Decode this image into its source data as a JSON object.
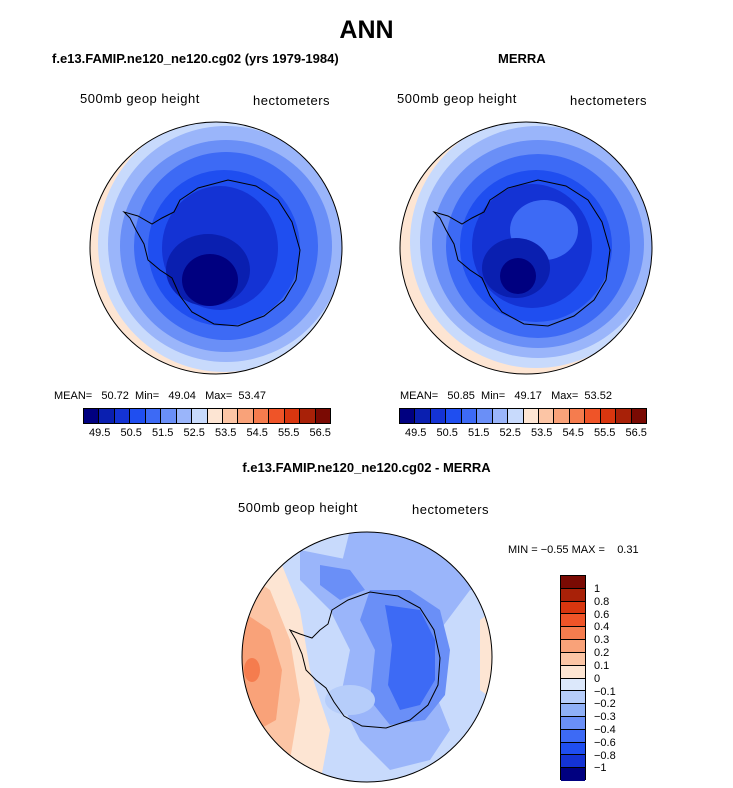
{
  "title": "ANN",
  "panels": [
    {
      "case": "f.e13.FAMIP.ne120_ne120.cg02 (yrs 1979-1984)",
      "variable": "500mb geop height",
      "units": "hectometers",
      "mean_label": "MEAN=",
      "mean": "50.72",
      "min_label": "Min=",
      "min": "49.04",
      "max_label": "Max=",
      "max": "53.47"
    },
    {
      "case": "MERRA",
      "variable": "500mb geop height",
      "units": "hectometers",
      "mean_label": "MEAN=",
      "mean": "50.85",
      "min_label": "Min=",
      "min": "49.17",
      "max_label": "Max=",
      "max": "53.52"
    }
  ],
  "colorbar_abs": {
    "colors": [
      "#000080",
      "#0a1fb0",
      "#1433d4",
      "#1f4ef0",
      "#3d6af5",
      "#6a8ff7",
      "#9ab5fa",
      "#c8dafc",
      "#fde5d3",
      "#fcc5a5",
      "#f9a279",
      "#f57c4e",
      "#ef5428",
      "#d8360f",
      "#a82108",
      "#7a0a03"
    ],
    "tick_labels": [
      "49.5",
      "50.5",
      "51.5",
      "52.5",
      "53.5",
      "54.5",
      "55.5",
      "56.5"
    ]
  },
  "diff": {
    "title": "f.e13.FAMIP.ne120_ne120.cg02 - MERRA",
    "variable": "500mb geop height",
    "units": "hectometers",
    "min_label": "MIN =",
    "min": "−0.55",
    "max_label": "MAX =",
    "max": "0.31",
    "colorbar": {
      "colors": [
        "#7a0a03",
        "#a82108",
        "#d8360f",
        "#ef5428",
        "#f57c4e",
        "#f9a279",
        "#fcc5a5",
        "#fde5d3",
        "#dce8fb",
        "#b6cdfa",
        "#8fb0f7",
        "#6a8ff7",
        "#3d6af5",
        "#1f4ef0",
        "#1433d4",
        "#000080"
      ],
      "tick_labels": [
        "1",
        "0.8",
        "0.6",
        "0.4",
        "0.3",
        "0.2",
        "0.1",
        "0",
        "−0.1",
        "−0.2",
        "−0.3",
        "−0.4",
        "−0.6",
        "−0.8",
        "−1"
      ]
    }
  },
  "icons": {
    "antarctica_outline": "antarctica-coastline-icon"
  }
}
